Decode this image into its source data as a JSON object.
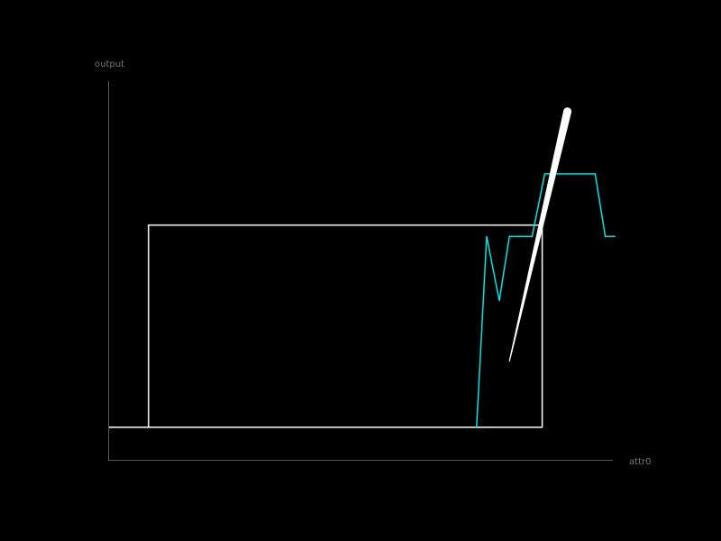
{
  "chart_data": {
    "type": "line",
    "xlabel": "attr0",
    "ylabel": "output",
    "xlim": [
      0,
      100
    ],
    "ylim": [
      0,
      100
    ],
    "grid": false,
    "legend": "none",
    "axis_color": "#555555",
    "label_color": "#777777",
    "series": [
      {
        "style": "step",
        "color": "#ffffff",
        "points": [
          [
            0,
            8.6
          ],
          [
            8,
            8.6
          ],
          [
            8,
            62
          ],
          [
            86,
            62
          ],
          [
            86,
            8.6
          ],
          [
            8,
            8.6
          ]
        ]
      },
      {
        "style": "line",
        "color": "#00e5e5",
        "points": [
          [
            73,
            8.6
          ],
          [
            75,
            59
          ],
          [
            77.5,
            42
          ],
          [
            79.5,
            59
          ],
          [
            84,
            59
          ],
          [
            86.5,
            75.5
          ],
          [
            96.5,
            75.5
          ],
          [
            98.5,
            59
          ],
          [
            100.5,
            59
          ]
        ]
      },
      {
        "style": "stroke",
        "color": "#ffffff",
        "points": [
          [
            79.5,
            26
          ],
          [
            91,
            92
          ]
        ]
      }
    ]
  }
}
